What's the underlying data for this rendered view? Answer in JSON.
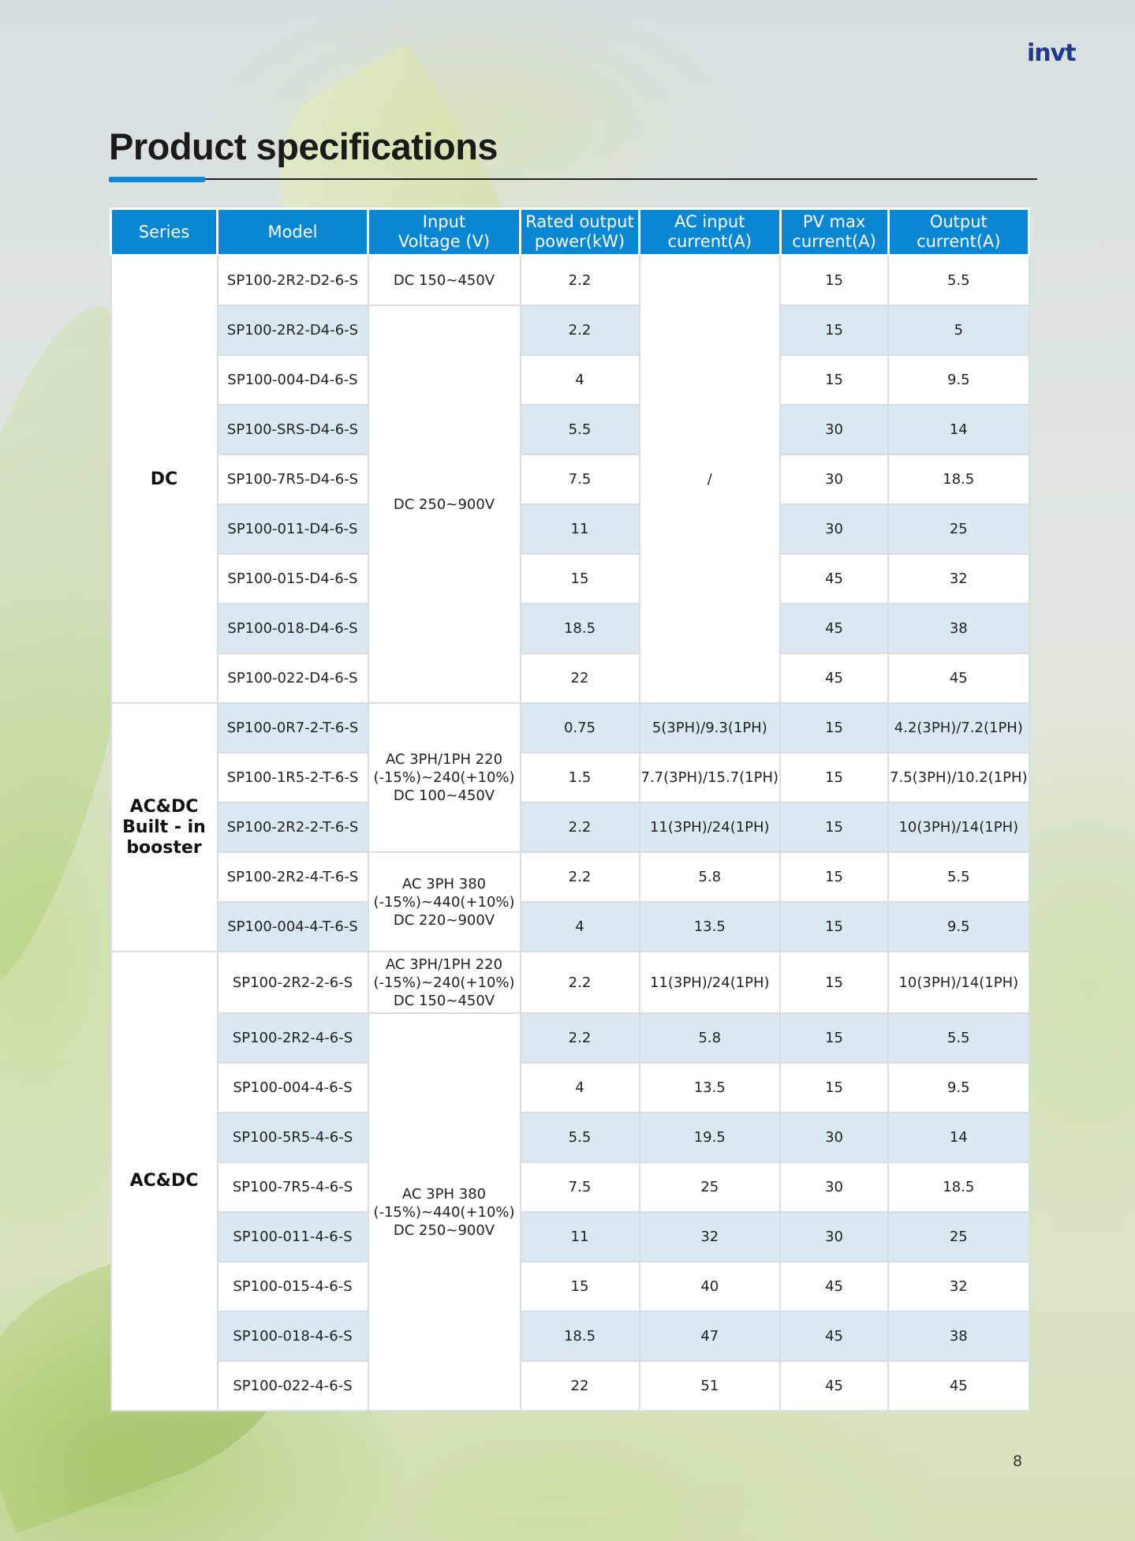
{
  "brand": {
    "logo_text_main": "invt"
  },
  "page": {
    "title": "Product specifications",
    "number": "8"
  },
  "table": {
    "headers": {
      "series": "Series",
      "model": "Model",
      "input_voltage": [
        "Input",
        "Voltage (V)"
      ],
      "rated_power": [
        "Rated output",
        "power(kW)"
      ],
      "ac_input": [
        "AC input",
        "current(A)"
      ],
      "pv_max": [
        "PV max",
        "current(A)"
      ],
      "output": [
        "Output",
        "current(A)"
      ]
    },
    "series": [
      "DC",
      [
        "AC&DC",
        "Built - in",
        "booster"
      ],
      "AC&DC"
    ],
    "voltages": {
      "dc_150_450": "DC 150~450V",
      "dc_250_900": "DC 250~900V",
      "ac220_dc100": [
        "AC 3PH/1PH 220",
        "(-15%)~240(+10%)",
        "DC 100~450V"
      ],
      "ac380_dc220": [
        "AC 3PH 380",
        "(-15%)~440(+10%)",
        "DC 220~900V"
      ],
      "ac220_dc150": [
        "AC 3PH/1PH 220",
        "(-15%)~240(+10%)",
        "DC 150~450V"
      ],
      "ac380_dc250": [
        "AC 3PH 380",
        "(-15%)~440(+10%)",
        "DC 250~900V"
      ]
    },
    "dc_ac_input": "/",
    "rows": [
      {
        "model": "SP100-2R2-D2-6-S",
        "power": "2.2",
        "ac": "",
        "pv": "15",
        "out": "5.5"
      },
      {
        "model": "SP100-2R2-D4-6-S",
        "power": "2.2",
        "ac": "",
        "pv": "15",
        "out": "5"
      },
      {
        "model": "SP100-004-D4-6-S",
        "power": "4",
        "ac": "",
        "pv": "15",
        "out": "9.5"
      },
      {
        "model": "SP100-SRS-D4-6-S",
        "power": "5.5",
        "ac": "",
        "pv": "30",
        "out": "14"
      },
      {
        "model": "SP100-7R5-D4-6-S",
        "power": "7.5",
        "ac": "",
        "pv": "30",
        "out": "18.5"
      },
      {
        "model": "SP100-011-D4-6-S",
        "power": "11",
        "ac": "",
        "pv": "30",
        "out": "25"
      },
      {
        "model": "SP100-015-D4-6-S",
        "power": "15",
        "ac": "",
        "pv": "45",
        "out": "32"
      },
      {
        "model": "SP100-018-D4-6-S",
        "power": "18.5",
        "ac": "",
        "pv": "45",
        "out": "38"
      },
      {
        "model": "SP100-022-D4-6-S",
        "power": "22",
        "ac": "",
        "pv": "45",
        "out": "45"
      },
      {
        "model": "SP100-0R7-2-T-6-S",
        "power": "0.75",
        "ac": "5(3PH)/9.3(1PH)",
        "pv": "15",
        "out": "4.2(3PH)/7.2(1PH)"
      },
      {
        "model": "SP100-1R5-2-T-6-S",
        "power": "1.5",
        "ac": "7.7(3PH)/15.7(1PH)",
        "pv": "15",
        "out": "7.5(3PH)/10.2(1PH)"
      },
      {
        "model": "SP100-2R2-2-T-6-S",
        "power": "2.2",
        "ac": "11(3PH)/24(1PH)",
        "pv": "15",
        "out": "10(3PH)/14(1PH)"
      },
      {
        "model": "SP100-2R2-4-T-6-S",
        "power": "2.2",
        "ac": "5.8",
        "pv": "15",
        "out": "5.5"
      },
      {
        "model": "SP100-004-4-T-6-S",
        "power": "4",
        "ac": "13.5",
        "pv": "15",
        "out": "9.5"
      },
      {
        "model": "SP100-2R2-2-6-S",
        "power": "2.2",
        "ac": "11(3PH)/24(1PH)",
        "pv": "15",
        "out": "10(3PH)/14(1PH)"
      },
      {
        "model": "SP100-2R2-4-6-S",
        "power": "2.2",
        "ac": "5.8",
        "pv": "15",
        "out": "5.5"
      },
      {
        "model": "SP100-004-4-6-S",
        "power": "4",
        "ac": "13.5",
        "pv": "15",
        "out": "9.5"
      },
      {
        "model": "SP100-5R5-4-6-S",
        "power": "5.5",
        "ac": "19.5",
        "pv": "30",
        "out": "14"
      },
      {
        "model": "SP100-7R5-4-6-S",
        "power": "7.5",
        "ac": "25",
        "pv": "30",
        "out": "18.5"
      },
      {
        "model": "SP100-011-4-6-S",
        "power": "11",
        "ac": "32",
        "pv": "30",
        "out": "25"
      },
      {
        "model": "SP100-015-4-6-S",
        "power": "15",
        "ac": "40",
        "pv": "45",
        "out": "32"
      },
      {
        "model": "SP100-018-4-6-S",
        "power": "18.5",
        "ac": "47",
        "pv": "45",
        "out": "38"
      },
      {
        "model": "SP100-022-4-6-S",
        "power": "22",
        "ac": "51",
        "pv": "45",
        "out": "45"
      }
    ]
  }
}
